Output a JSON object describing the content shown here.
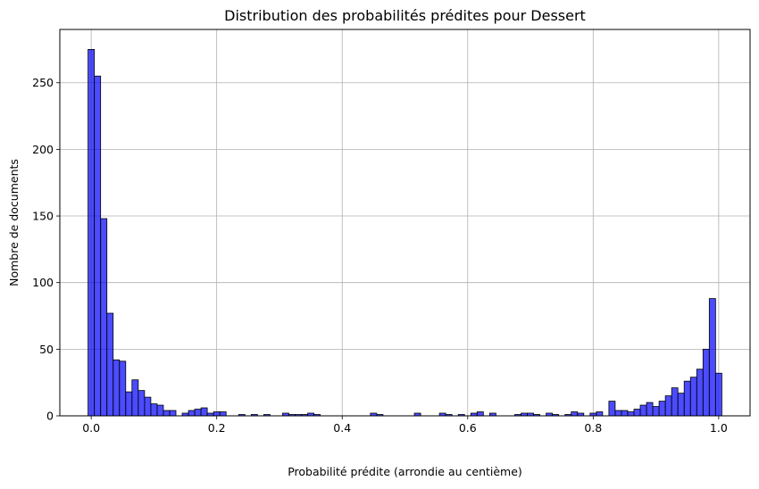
{
  "chart_data": {
    "type": "bar",
    "title": "Distribution des probabilités prédites pour Dessert",
    "xlabel": "Probabilité prédite (arrondie au centième)",
    "ylabel": "Nombre de documents",
    "xlim": [
      -0.05,
      1.05
    ],
    "ylim": [
      0,
      290
    ],
    "xticks": [
      0.0,
      0.2,
      0.4,
      0.6,
      0.8,
      1.0
    ],
    "xtick_labels": [
      "0.0",
      "0.2",
      "0.4",
      "0.6",
      "0.8",
      "1.0"
    ],
    "yticks": [
      0,
      50,
      100,
      150,
      200,
      250
    ],
    "ytick_labels": [
      "0",
      "50",
      "100",
      "150",
      "200",
      "250"
    ],
    "grid": true,
    "bar_color": "#0000ff",
    "bar_alpha": 0.7,
    "edge_color": "#000000",
    "bin_width": 0.01,
    "bins_x": [
      0.0,
      0.01,
      0.02,
      0.03,
      0.04,
      0.05,
      0.06,
      0.07,
      0.08,
      0.09,
      0.1,
      0.11,
      0.12,
      0.13,
      0.14,
      0.15,
      0.16,
      0.17,
      0.18,
      0.19,
      0.2,
      0.21,
      0.22,
      0.23,
      0.24,
      0.25,
      0.26,
      0.27,
      0.28,
      0.29,
      0.3,
      0.31,
      0.32,
      0.33,
      0.34,
      0.35,
      0.36,
      0.37,
      0.38,
      0.39,
      0.4,
      0.41,
      0.42,
      0.43,
      0.44,
      0.45,
      0.46,
      0.47,
      0.48,
      0.49,
      0.5,
      0.51,
      0.52,
      0.53,
      0.54,
      0.55,
      0.56,
      0.57,
      0.58,
      0.59,
      0.6,
      0.61,
      0.62,
      0.63,
      0.64,
      0.65,
      0.66,
      0.67,
      0.68,
      0.69,
      0.7,
      0.71,
      0.72,
      0.73,
      0.74,
      0.75,
      0.76,
      0.77,
      0.78,
      0.79,
      0.8,
      0.81,
      0.82,
      0.83,
      0.84,
      0.85,
      0.86,
      0.87,
      0.88,
      0.89,
      0.9,
      0.91,
      0.92,
      0.93,
      0.94,
      0.95,
      0.96,
      0.97,
      0.98,
      0.99,
      1.0
    ],
    "counts": [
      275,
      255,
      148,
      77,
      42,
      41,
      18,
      27,
      19,
      14,
      9,
      8,
      4,
      4,
      0,
      2,
      4,
      5,
      6,
      2,
      3,
      3,
      0,
      0,
      1,
      0,
      1,
      0,
      1,
      0,
      0,
      2,
      1,
      1,
      1,
      2,
      1,
      0,
      0,
      0,
      0,
      0,
      0,
      0,
      0,
      2,
      1,
      0,
      0,
      0,
      0,
      0,
      2,
      0,
      0,
      0,
      2,
      1,
      0,
      1,
      0,
      2,
      3,
      0,
      2,
      0,
      0,
      0,
      1,
      2,
      2,
      1,
      0,
      2,
      1,
      0,
      1,
      3,
      2,
      0,
      2,
      3,
      0,
      11,
      4,
      4,
      3,
      5,
      8,
      10,
      7,
      11,
      15,
      21,
      17,
      26,
      29,
      35,
      50,
      88,
      32
    ]
  }
}
